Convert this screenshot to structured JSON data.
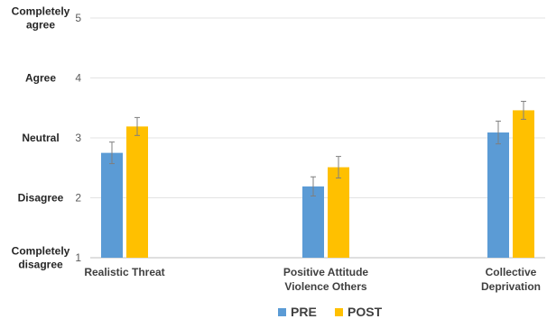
{
  "chart_data": {
    "type": "bar",
    "categories": [
      [
        "Realistic Threat"
      ],
      [
        "Positive Attitude",
        "Violence Others"
      ],
      [
        "Collective",
        "Deprivation"
      ]
    ],
    "series": [
      {
        "name": "PRE",
        "color": "#5B9BD5",
        "values": [
          2.75,
          2.19,
          3.09
        ],
        "error": [
          0.18,
          0.16,
          0.19
        ]
      },
      {
        "name": "POST",
        "color": "#FFC000",
        "values": [
          3.19,
          2.51,
          3.46
        ],
        "error": [
          0.15,
          0.18,
          0.15
        ]
      }
    ],
    "ylim": [
      1,
      5
    ],
    "yticks": [
      1,
      2,
      3,
      4,
      5
    ],
    "ylevels": [
      {
        "value": 5,
        "lines": [
          "Completely",
          "agree"
        ]
      },
      {
        "value": 4,
        "lines": [
          "Agree"
        ]
      },
      {
        "value": 3,
        "lines": [
          "Neutral"
        ]
      },
      {
        "value": 2,
        "lines": [
          "Disagree"
        ]
      },
      {
        "value": 1,
        "lines": [
          "Completely",
          "disagree"
        ]
      }
    ],
    "grid": true,
    "legend_position": "bottom-center"
  }
}
